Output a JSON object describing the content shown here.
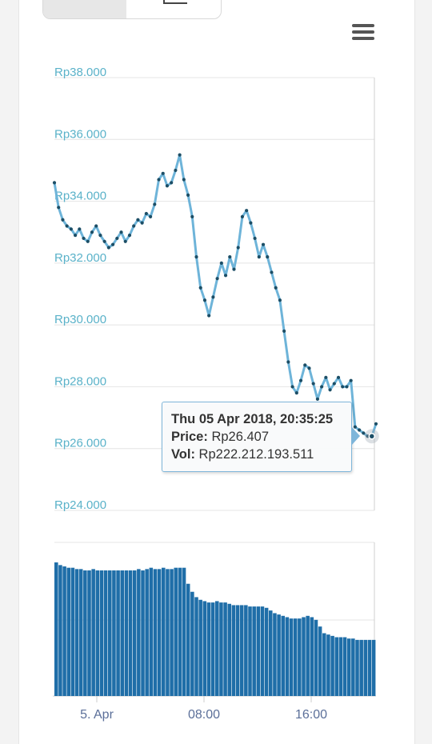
{
  "colors": {
    "line": "#6eb4d9",
    "marker": "#1c4e66",
    "volume": "#1f6ea8",
    "grid": "#e4e4e4",
    "ytick": "#5ab2c9",
    "xtick": "#5b6f99"
  },
  "chart_data": {
    "type": "line",
    "price": {
      "ylim": [
        24000,
        38000
      ],
      "y_ticks": [
        "Rp38.000",
        "Rp36.000",
        "Rp34.000",
        "Rp32.000",
        "Rp30.000",
        "Rp28.000",
        "Rp26.000",
        "Rp24.000"
      ],
      "y_tick_values": [
        38000,
        36000,
        34000,
        32000,
        30000,
        28000,
        26000,
        24000
      ],
      "series": [
        {
          "values": [
            34600,
            33800,
            33400,
            33200,
            33100,
            32900,
            33100,
            32800,
            32700,
            33000,
            33200,
            32900,
            32700,
            32500,
            32600,
            32800,
            33000,
            32700,
            32900,
            33200,
            33400,
            33300,
            33600,
            33500,
            33900,
            34700,
            34900,
            34500,
            34600,
            35000,
            35500,
            34700,
            34200,
            33500,
            32200,
            31200,
            30800,
            30300,
            30900,
            31500,
            32000,
            31600,
            32200,
            31800,
            32500,
            33500,
            33700,
            33300,
            32800,
            32200,
            32600,
            32200,
            31700,
            31200,
            30800,
            29800,
            28800,
            28000,
            27800,
            28200,
            28700,
            28600,
            28100,
            27600,
            28000,
            28300,
            27900,
            28100,
            28300,
            28000,
            28000,
            28200,
            26700,
            26600,
            26500,
            26400,
            26400,
            26800
          ]
        }
      ]
    },
    "volume": {
      "values": [
        100,
        98,
        97,
        96,
        96,
        95,
        95,
        94,
        94,
        95,
        94,
        94,
        94,
        94,
        94,
        94,
        94,
        94,
        94,
        94,
        95,
        94,
        95,
        96,
        95,
        95,
        96,
        95,
        95,
        96,
        96,
        96,
        84,
        78,
        74,
        72,
        71,
        70,
        70,
        71,
        70,
        70,
        69,
        68,
        68,
        68,
        68,
        67,
        67,
        67,
        67,
        66,
        64,
        62,
        61,
        60,
        59,
        58,
        58,
        58,
        59,
        60,
        59,
        57,
        52,
        47,
        46,
        45,
        44,
        44,
        44,
        43,
        43,
        42,
        42,
        42,
        42,
        42
      ]
    },
    "x_ticks": [
      "5. Apr",
      "08:00",
      "16:00"
    ],
    "tooltip": {
      "title": "Thu 05 Apr 2018, 20:35:25",
      "price_label": "Price:",
      "price_value": "Rp26.407",
      "vol_label": "Vol:",
      "vol_value": "Rp222.212.193.511"
    }
  },
  "menu_icon": "hamburger-menu-icon"
}
